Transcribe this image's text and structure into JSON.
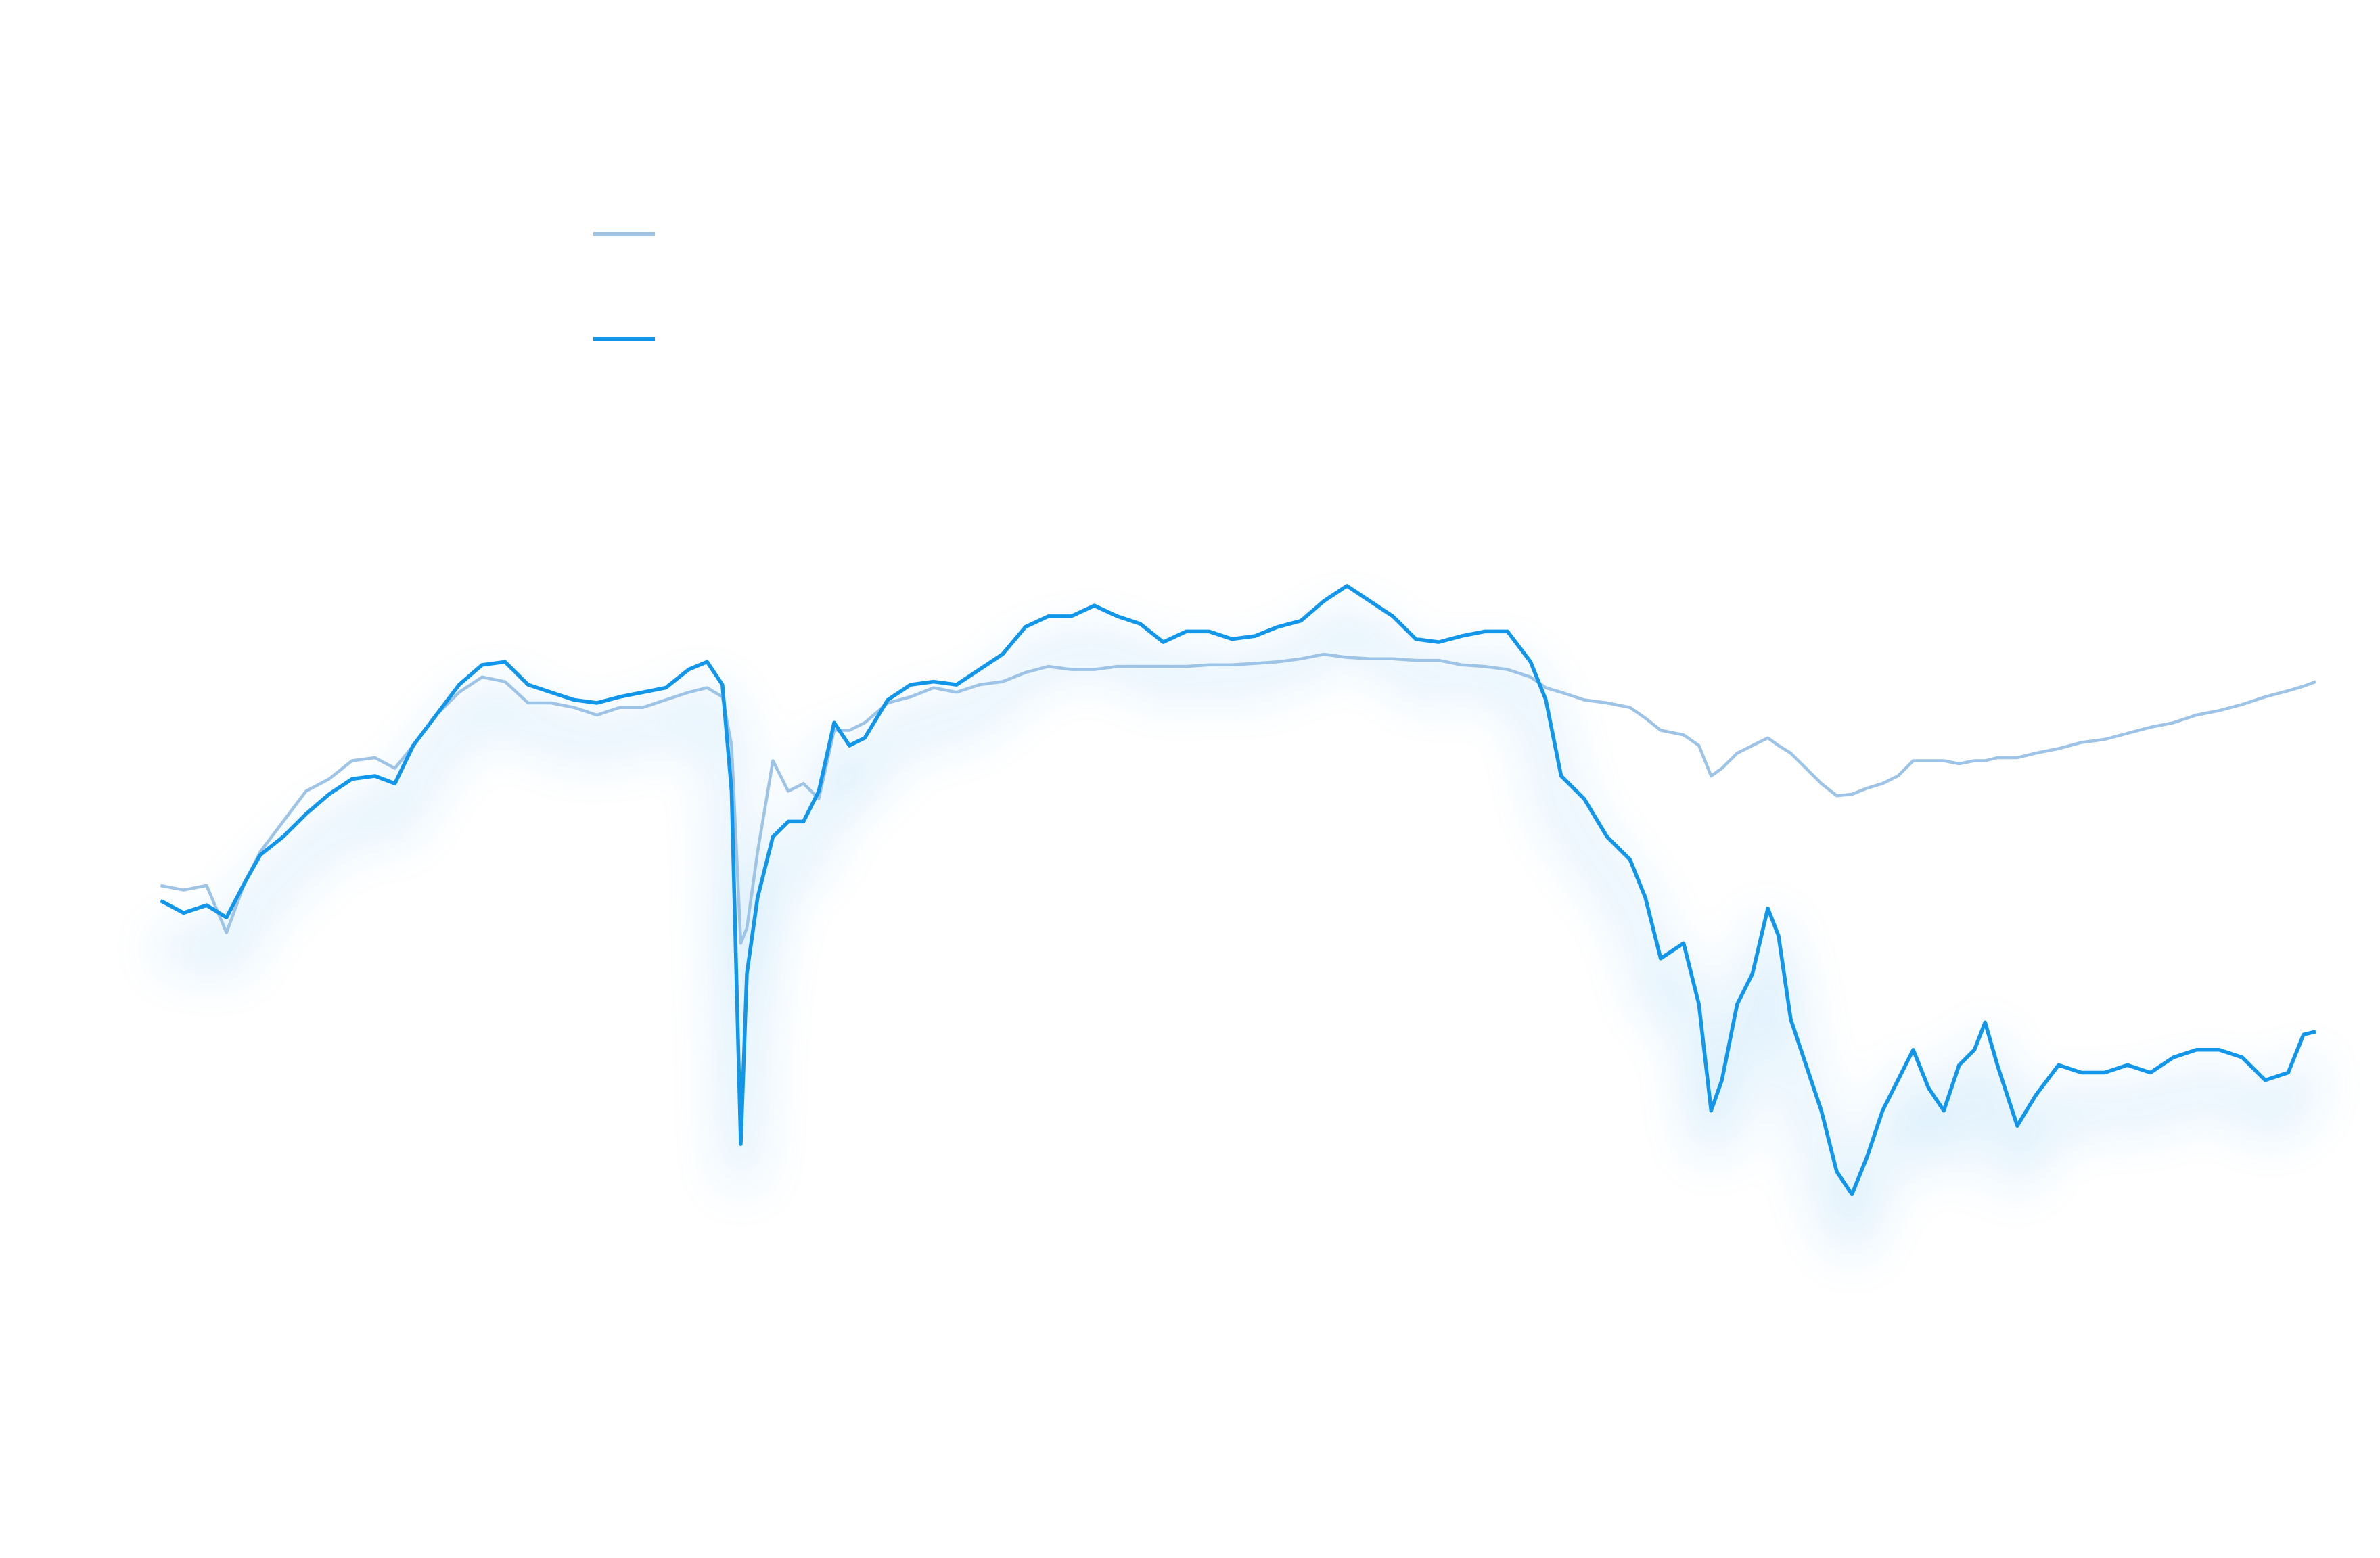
{
  "chart_data": {
    "type": "line",
    "x": [
      105,
      120,
      135,
      148,
      160,
      170,
      185,
      200,
      215,
      230,
      245,
      258,
      270,
      285,
      300,
      315,
      330,
      345,
      360,
      375,
      390,
      405,
      420,
      435,
      450,
      462,
      472,
      478,
      484,
      488,
      495,
      505,
      515,
      525,
      535,
      545,
      555,
      565,
      580,
      595,
      610,
      625,
      640,
      655,
      670,
      685,
      700,
      715,
      730,
      745,
      760,
      775,
      790,
      805,
      820,
      835,
      850,
      865,
      880,
      895,
      910,
      925,
      940,
      955,
      970,
      985,
      1000,
      1010,
      1020,
      1035,
      1050,
      1065,
      1075,
      1085,
      1100,
      1110,
      1118,
      1125,
      1135,
      1145,
      1155,
      1162,
      1170,
      1180,
      1190,
      1200,
      1210,
      1220,
      1230,
      1240,
      1250,
      1260,
      1270,
      1280,
      1290,
      1297,
      1305,
      1318,
      1330,
      1345,
      1360,
      1375,
      1390,
      1405,
      1420,
      1435,
      1450,
      1465,
      1480,
      1495,
      1505,
      1513
    ],
    "xlim": [
      105,
      1513
    ],
    "ylim": [
      100,
      900
    ],
    "series": [
      {
        "color": "#9dc3e6",
        "values": [
          418,
          415,
          418,
          387,
          420,
          440,
          460,
          480,
          488,
          500,
          502,
          495,
          510,
          530,
          545,
          555,
          552,
          538,
          538,
          535,
          530,
          535,
          535,
          540,
          545,
          548,
          542,
          510,
          380,
          390,
          440,
          500,
          480,
          485,
          475,
          520,
          520,
          525,
          538,
          542,
          548,
          545,
          550,
          552,
          558,
          562,
          560,
          560,
          562,
          562,
          562,
          562,
          563,
          563,
          564,
          565,
          567,
          570,
          568,
          567,
          567,
          566,
          566,
          563,
          562,
          560,
          555,
          548,
          545,
          540,
          538,
          535,
          528,
          520,
          517,
          510,
          490,
          495,
          505,
          510,
          515,
          510,
          505,
          495,
          485,
          477,
          478,
          482,
          485,
          490,
          500,
          500,
          500,
          498,
          500,
          500,
          502,
          502,
          505,
          508,
          512,
          514,
          518,
          522,
          525,
          530,
          533,
          537,
          542,
          546,
          549,
          552
        ]
      },
      {
        "color": "#1296ea",
        "values": [
          408,
          400,
          405,
          397,
          420,
          438,
          450,
          465,
          478,
          488,
          490,
          485,
          510,
          530,
          550,
          563,
          565,
          550,
          545,
          540,
          538,
          542,
          545,
          548,
          560,
          565,
          550,
          480,
          248,
          360,
          410,
          450,
          460,
          460,
          480,
          525,
          510,
          515,
          540,
          550,
          552,
          550,
          560,
          570,
          588,
          595,
          595,
          602,
          595,
          590,
          578,
          585,
          585,
          580,
          582,
          588,
          592,
          605,
          615,
          605,
          595,
          580,
          578,
          582,
          585,
          585,
          565,
          540,
          490,
          475,
          450,
          435,
          410,
          370,
          380,
          340,
          270,
          290,
          340,
          360,
          403,
          385,
          330,
          300,
          270,
          230,
          215,
          240,
          270,
          290,
          310,
          285,
          270,
          300,
          310,
          328,
          300,
          260,
          280,
          300,
          295,
          295,
          300,
          295,
          305,
          310,
          310,
          305,
          290,
          295,
          320,
          322
        ]
      }
    ]
  }
}
